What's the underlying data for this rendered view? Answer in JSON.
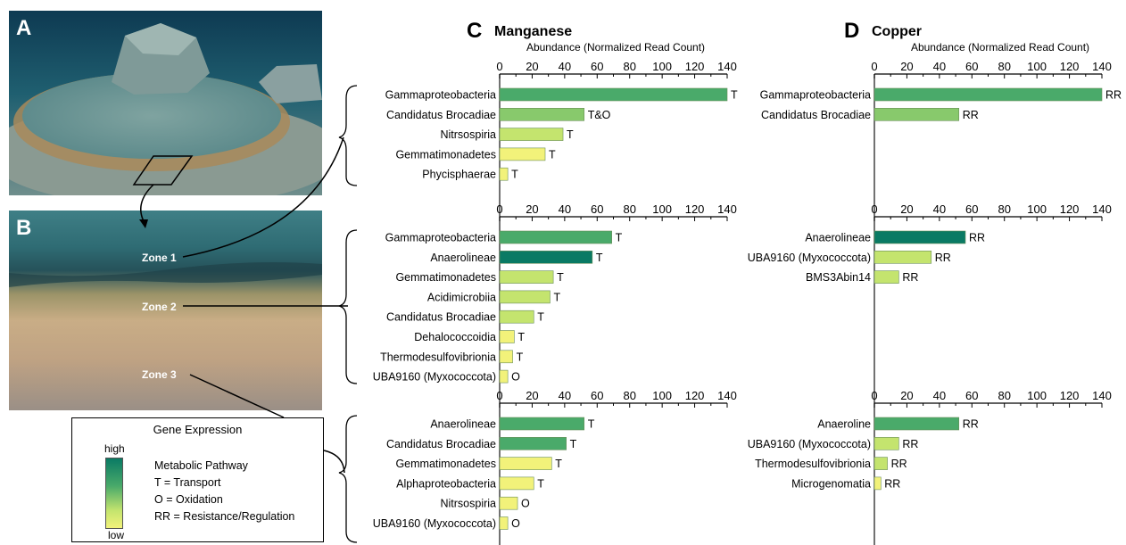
{
  "panels": {
    "a": {
      "letter": "A"
    },
    "b": {
      "letter": "B",
      "zones": [
        "Zone 1",
        "Zone 2",
        "Zone 3"
      ]
    },
    "c": {
      "letter": "C",
      "title": "Manganese",
      "axis_label": "Abundance (Normalized Read Count)"
    },
    "d": {
      "letter": "D",
      "title": "Copper",
      "axis_label": "Abundance (Normalized Read Count)"
    }
  },
  "legend": {
    "title": "Gene Expression",
    "high": "high",
    "low": "low",
    "heading": "Metabolic Pathway",
    "items": [
      "T = Transport",
      "O = Oxidation",
      "RR = Resistance/Regulation"
    ]
  },
  "colors": {
    "high": "#0a7a64",
    "mid_high": "#4aaa6a",
    "mid": "#88c96c",
    "mid_low": "#c4e46e",
    "low": "#f2f27a"
  },
  "chart_data": [
    {
      "type": "bar",
      "panel": "C",
      "zone": "Zone 1",
      "xlim": [
        0,
        140
      ],
      "ticks": [
        0,
        20,
        40,
        60,
        80,
        100,
        120,
        140
      ],
      "categories": [
        "Gammaproteobacteria",
        "Candidatus Brocadiae",
        "Nitrsospiria",
        "Gemmatimonadetes",
        "Phycisphaerae"
      ],
      "values": [
        140,
        52,
        39,
        28,
        5
      ],
      "labels": [
        "T",
        "T&O",
        "T",
        "T",
        "T"
      ],
      "expression": [
        "mid_high",
        "mid",
        "mid_low",
        "low",
        "low"
      ]
    },
    {
      "type": "bar",
      "panel": "C",
      "zone": "Zone 2",
      "xlim": [
        0,
        140
      ],
      "ticks": [
        0,
        20,
        40,
        60,
        80,
        100,
        120,
        140
      ],
      "categories": [
        "Gammaproteobacteria",
        "Anaerolineae",
        "Gemmatimonadetes",
        "Acidimicrobiia",
        "Candidatus Brocadiae",
        "Dehalococcoidia",
        "Thermodesulfovibrionia",
        "UBA9160 (Myxococcota)"
      ],
      "values": [
        69,
        57,
        33,
        31,
        21,
        9,
        8,
        5
      ],
      "labels": [
        "T",
        "T",
        "T",
        "T",
        "T",
        "T",
        "T",
        "O"
      ],
      "expression": [
        "mid_high",
        "high",
        "mid_low",
        "mid_low",
        "mid_low",
        "low",
        "low",
        "low"
      ]
    },
    {
      "type": "bar",
      "panel": "C",
      "zone": "Zone 3",
      "xlim": [
        0,
        140
      ],
      "ticks": [
        0,
        20,
        40,
        60,
        80,
        100,
        120,
        140
      ],
      "categories": [
        "Anaerolineae",
        "Candidatus Brocadiae",
        "Gemmatimonadetes",
        "Alphaproteobacteria",
        "Nitrsospiria",
        "UBA9160 (Myxococcota)"
      ],
      "values": [
        52,
        41,
        32,
        21,
        11,
        5
      ],
      "labels": [
        "T",
        "T",
        "T",
        "T",
        "O",
        "O"
      ],
      "expression": [
        "mid_high",
        "mid_high",
        "low",
        "low",
        "low",
        "low"
      ]
    },
    {
      "type": "bar",
      "panel": "D",
      "zone": "Zone 1",
      "xlim": [
        0,
        140
      ],
      "ticks": [
        0,
        20,
        40,
        60,
        80,
        100,
        120,
        140
      ],
      "categories": [
        "Gammaproteobacteria",
        "Candidatus Brocadiae"
      ],
      "values": [
        140,
        52
      ],
      "labels": [
        "RR",
        "RR"
      ],
      "expression": [
        "mid_high",
        "mid"
      ]
    },
    {
      "type": "bar",
      "panel": "D",
      "zone": "Zone 2",
      "xlim": [
        0,
        140
      ],
      "ticks": [
        0,
        20,
        40,
        60,
        80,
        100,
        120,
        140
      ],
      "categories": [
        "Anaerolineae",
        "UBA9160 (Myxococcota)",
        "BMS3Abin14"
      ],
      "values": [
        56,
        35,
        15
      ],
      "labels": [
        "RR",
        "RR",
        "RR"
      ],
      "expression": [
        "high",
        "mid_low",
        "mid_low"
      ]
    },
    {
      "type": "bar",
      "panel": "D",
      "zone": "Zone 3",
      "xlim": [
        0,
        140
      ],
      "ticks": [
        0,
        20,
        40,
        60,
        80,
        100,
        120,
        140
      ],
      "categories": [
        "Anaeroline",
        "UBA9160 (Myxococcota)",
        "Thermodesulfovibrionia",
        "Microgenomatia"
      ],
      "values": [
        52,
        15,
        8,
        4
      ],
      "labels": [
        "RR",
        "RR",
        "RR",
        "RR"
      ],
      "expression": [
        "mid_high",
        "mid_low",
        "mid_low",
        "low"
      ]
    }
  ]
}
